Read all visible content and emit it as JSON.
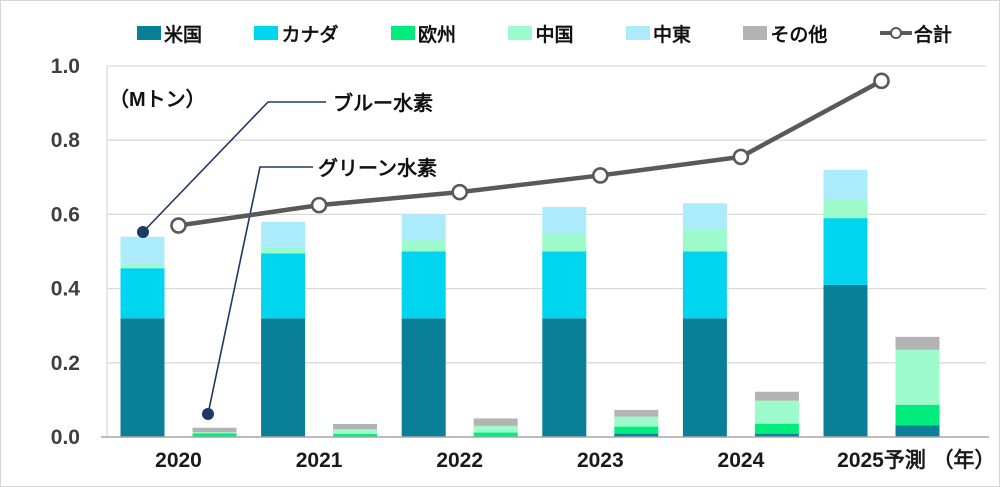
{
  "page": {
    "background": "#ffffff",
    "border_color": "#d6d6d6"
  },
  "legend": {
    "position": "top",
    "items": [
      {
        "label": "米国",
        "color": "#0A8098",
        "type": "swatch"
      },
      {
        "label": "カナダ",
        "color": "#00D5F0",
        "type": "swatch"
      },
      {
        "label": "欧州",
        "color": "#00EC7C",
        "type": "swatch"
      },
      {
        "label": "中国",
        "color": "#9DFACA",
        "type": "swatch"
      },
      {
        "label": "中東",
        "color": "#ABEBFC",
        "type": "swatch"
      },
      {
        "label": "その他",
        "color": "#B3B3B3",
        "type": "swatch"
      },
      {
        "label": "合計",
        "color": "#595959",
        "type": "line-marker"
      }
    ]
  },
  "annotations": {
    "blue": {
      "label": "ブルー水素",
      "color": "#1F3864"
    },
    "green": {
      "label": "グリーン水素",
      "color": "#1F3864"
    }
  },
  "chart_data": {
    "type": "bar",
    "subtype": "stacked bars in pairs (blue hydrogen / green hydrogen) per year + total line",
    "title": "",
    "unit_label": "（Mトン）",
    "x_axis_unit": "（年）",
    "categories": [
      "2020",
      "2021",
      "2022",
      "2023",
      "2024",
      "2025予測"
    ],
    "stack_order": [
      "米国",
      "カナダ",
      "欧州",
      "中国",
      "中東",
      "その他"
    ],
    "region_colors": [
      "#0A8098",
      "#00D5F0",
      "#00EC7C",
      "#9DFACA",
      "#ABEBFC",
      "#B3B3B3"
    ],
    "groups": [
      {
        "name": "ブルー水素",
        "note": "left bar of each pair",
        "per_year_stacks": [
          [
            0.32,
            0.135,
            0,
            0.01,
            0.075,
            0
          ],
          [
            0.32,
            0.175,
            0,
            0.015,
            0.07,
            0
          ],
          [
            0.32,
            0.18,
            0,
            0.03,
            0.07,
            0
          ],
          [
            0.32,
            0.18,
            0,
            0.05,
            0.07,
            0
          ],
          [
            0.32,
            0.18,
            0,
            0.06,
            0.07,
            0
          ],
          [
            0.41,
            0.18,
            0,
            0.05,
            0.08,
            0
          ]
        ]
      },
      {
        "name": "グリーン水素",
        "note": "right bar of each pair",
        "per_year_stacks": [
          [
            0,
            0,
            0.01,
            0.003,
            0,
            0.012
          ],
          [
            0,
            0,
            0.008,
            0.013,
            0,
            0.014
          ],
          [
            0,
            0,
            0.012,
            0.018,
            0,
            0.02
          ],
          [
            0.009,
            0,
            0.019,
            0.027,
            0,
            0.018
          ],
          [
            0.009,
            0,
            0.027,
            0.062,
            0,
            0.024
          ],
          [
            0.031,
            0,
            0.056,
            0.148,
            0,
            0.035
          ]
        ]
      }
    ],
    "total_line": {
      "name": "合計",
      "color": "#595959",
      "values": [
        0.57,
        0.625,
        0.66,
        0.705,
        0.755,
        0.96
      ]
    },
    "ylim": [
      0,
      1.0
    ],
    "yticks": [
      "0.0",
      "0.2",
      "0.4",
      "0.6",
      "0.8",
      "1.0"
    ],
    "grid": true,
    "legend_position": "top",
    "colors": {
      "gridline": "#D9D9D9",
      "axis": "#A6A6A6",
      "tick_text": "#3F3F3F",
      "x_text": "#1A1A1A",
      "annotation": "#1F3864"
    }
  }
}
